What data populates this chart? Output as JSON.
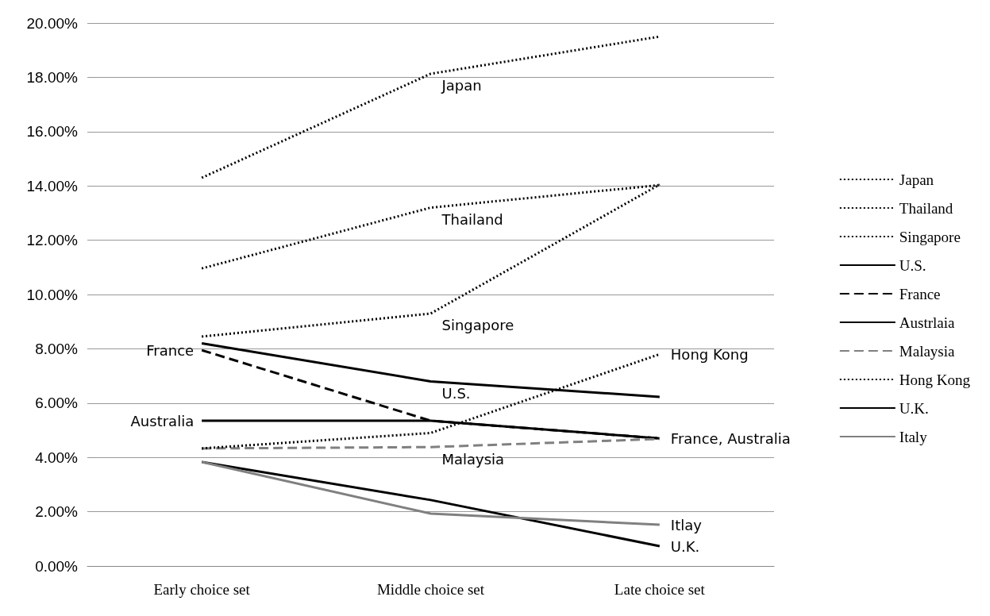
{
  "chart_data": {
    "type": "line",
    "categories": [
      "Early choice set",
      "Middle choice set",
      "Late choice set"
    ],
    "series": [
      {
        "name": "Japan",
        "color": "#000000",
        "line_style": "dotted",
        "values": [
          14.3,
          18.13,
          19.5
        ]
      },
      {
        "name": "Thailand",
        "color": "#000000",
        "line_style": "dotted",
        "values": [
          10.96,
          13.2,
          14.03
        ]
      },
      {
        "name": "Singapore",
        "color": "#000000",
        "line_style": "dotted",
        "values": [
          8.45,
          9.3,
          14.05
        ]
      },
      {
        "name": "U.S.",
        "color": "#000000",
        "line_style": "solid",
        "values": [
          8.2,
          6.8,
          6.23
        ]
      },
      {
        "name": "France",
        "color": "#000000",
        "line_style": "dashed",
        "values": [
          7.95,
          5.35,
          4.7
        ]
      },
      {
        "name": "Austrlaia",
        "color": "#000000",
        "line_style": "solid",
        "values": [
          5.35,
          5.35,
          4.7
        ]
      },
      {
        "name": "Malaysia",
        "color": "#808080",
        "line_style": "dashed",
        "values": [
          4.33,
          4.38,
          4.68
        ]
      },
      {
        "name": "Hong Kong",
        "color": "#000000",
        "line_style": "dotted",
        "values": [
          4.33,
          4.9,
          7.8
        ]
      },
      {
        "name": "U.K.",
        "color": "#000000",
        "line_style": "solid",
        "values": [
          3.83,
          2.43,
          0.73
        ]
      },
      {
        "name": "Italy",
        "color": "#808080",
        "line_style": "solid",
        "values": [
          3.83,
          1.93,
          1.52
        ]
      }
    ],
    "ylim": [
      0,
      20
    ],
    "yticks": [
      {
        "value": 0,
        "label": "0.00%"
      },
      {
        "value": 2,
        "label": "2.00%"
      },
      {
        "value": 4,
        "label": "4.00%"
      },
      {
        "value": 6,
        "label": "6.00%"
      },
      {
        "value": 8,
        "label": "8.00%"
      },
      {
        "value": 10,
        "label": "10.00%"
      },
      {
        "value": 12,
        "label": "12.00%"
      },
      {
        "value": 14,
        "label": "14.00%"
      },
      {
        "value": 16,
        "label": "16.00%"
      },
      {
        "value": 18,
        "label": "18.00%"
      },
      {
        "value": 20,
        "label": "20.00%"
      }
    ],
    "grid": "y",
    "legend": "right",
    "marker": "none",
    "annotations": [
      {
        "text": "Japan",
        "x": "Middle choice set",
        "y": 18.13
      },
      {
        "text": "Thailand",
        "x": "Middle choice set",
        "y": 13.2
      },
      {
        "text": "Singapore",
        "x": "Middle choice set",
        "y": 9.3
      },
      {
        "text": "U.S.",
        "x": "Middle choice set",
        "y": 6.8
      },
      {
        "text": "France",
        "x": "Early choice set",
        "y": 7.95
      },
      {
        "text": "Australia",
        "x": "Early choice set",
        "y": 5.35
      },
      {
        "text": "France, Australia",
        "x": "Late choice set",
        "y": 4.7
      },
      {
        "text": "Malaysia",
        "x": "Middle choice set",
        "y": 4.38
      },
      {
        "text": "Hong Kong",
        "x": "Late choice set",
        "y": 7.8
      },
      {
        "text": "Itlay",
        "x": "Late choice set",
        "y": 1.52
      },
      {
        "text": "U.K.",
        "x": "Late choice set",
        "y": 0.73
      }
    ]
  }
}
